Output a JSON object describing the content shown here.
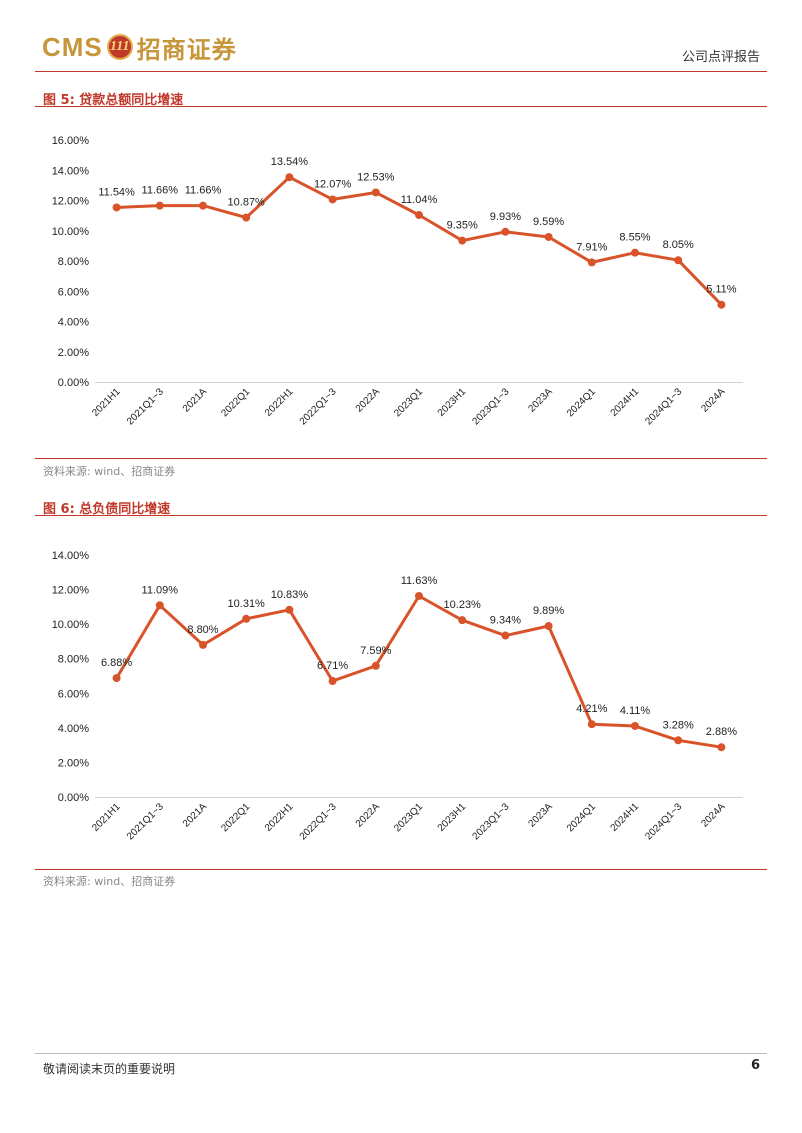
{
  "header": {
    "logo_latin": "CMS",
    "logo_badge": "111",
    "logo_cn": "招商证券",
    "doc_type": "公司点评报告"
  },
  "figures": [
    {
      "title": "图 5:  贷款总额同比增速",
      "source": "资料来源:  wind、招商证券"
    },
    {
      "title": "图 6:  总负债同比增速",
      "source": "资料来源:  wind、招商证券"
    }
  ],
  "chart_data": [
    {
      "type": "line",
      "title": "",
      "categories": [
        "2021H1",
        "2021Q1~3",
        "2021A",
        "2022Q1",
        "2022H1",
        "2022Q1~3",
        "2022A",
        "2023Q1",
        "2023H1",
        "2023Q1~3",
        "2023A",
        "2024Q1",
        "2024H1",
        "2024Q1~3",
        "2024A"
      ],
      "values": [
        11.54,
        11.66,
        11.66,
        10.87,
        13.54,
        12.07,
        12.53,
        11.04,
        9.35,
        9.93,
        9.59,
        7.91,
        8.55,
        8.05,
        5.11
      ],
      "data_labels": [
        "11.54%",
        "11.66%",
        "11.66%",
        "10.87%",
        "13.54%",
        "12.07%",
        "12.53%",
        "11.04%",
        "9.35%",
        "9.93%",
        "9.59%",
        "7.91%",
        "8.55%",
        "8.05%",
        "5.11%"
      ],
      "yticks": [
        "0.00%",
        "2.00%",
        "4.00%",
        "6.00%",
        "8.00%",
        "10.00%",
        "12.00%",
        "14.00%",
        "16.00%"
      ],
      "ylim": [
        0,
        16
      ],
      "color": "#d9532a",
      "grid": false,
      "legend": "none"
    },
    {
      "type": "line",
      "title": "",
      "categories": [
        "2021H1",
        "2021Q1~3",
        "2021A",
        "2022Q1",
        "2022H1",
        "2022Q1~3",
        "2022A",
        "2023Q1",
        "2023H1",
        "2023Q1~3",
        "2023A",
        "2024Q1",
        "2024H1",
        "2024Q1~3",
        "2024A"
      ],
      "values": [
        6.88,
        11.09,
        8.8,
        10.31,
        10.83,
        6.71,
        7.59,
        11.63,
        10.23,
        9.34,
        9.89,
        4.21,
        4.11,
        3.28,
        2.88
      ],
      "data_labels": [
        "6.88%",
        "11.09%",
        "8.80%",
        "10.31%",
        "10.83%",
        "6.71%",
        "7.59%",
        "11.63%",
        "10.23%",
        "9.34%",
        "9.89%",
        "4.21%",
        "4.11%",
        "3.28%",
        "2.88%"
      ],
      "yticks": [
        "0.00%",
        "2.00%",
        "4.00%",
        "6.00%",
        "8.00%",
        "10.00%",
        "12.00%",
        "14.00%"
      ],
      "ylim": [
        0,
        14
      ],
      "color": "#d9532a",
      "grid": false,
      "legend": "none"
    }
  ],
  "footer": {
    "disclaimer": "敬请阅读末页的重要说明",
    "page_number": "6"
  }
}
